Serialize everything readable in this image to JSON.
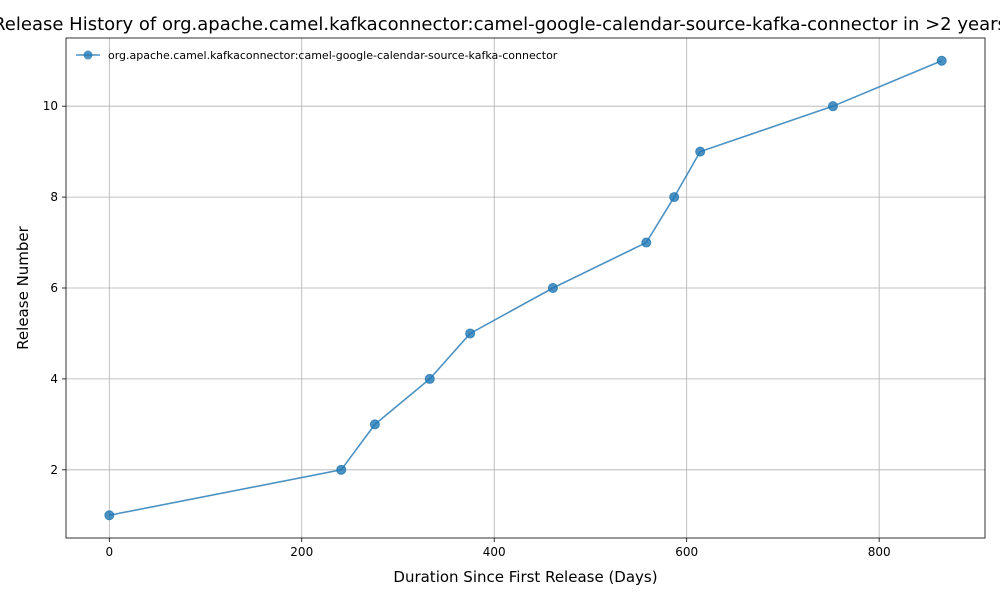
{
  "chart_data": {
    "type": "line",
    "title": "Release History of org.apache.camel.kafkaconnector:camel-google-calendar-source-kafka-connector in >2 years",
    "xlabel": "Duration Since First Release (Days)",
    "ylabel": "Release Number",
    "xlim": [
      -45,
      910
    ],
    "ylim": [
      0.5,
      11.5
    ],
    "xticks": [
      0,
      200,
      400,
      600,
      800
    ],
    "yticks": [
      2,
      4,
      6,
      8,
      10
    ],
    "grid": true,
    "legend_position": "top-left",
    "series": [
      {
        "name": "org.apache.camel.kafkaconnector:camel-google-calendar-source-kafka-connector",
        "color": "#1f77b4",
        "x": [
          0,
          241,
          276,
          333,
          375,
          461,
          558,
          587,
          614,
          752,
          865
        ],
        "y": [
          1,
          2,
          3,
          4,
          5,
          6,
          7,
          8,
          9,
          10,
          11
        ]
      }
    ]
  }
}
